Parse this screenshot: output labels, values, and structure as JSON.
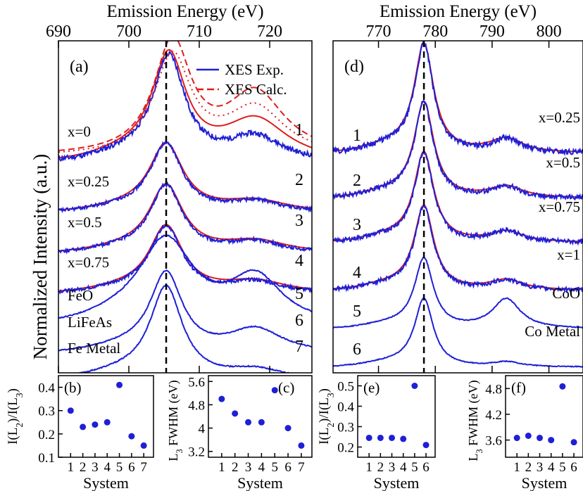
{
  "colors": {
    "exp": "#1f1fd6",
    "calc": "#e01b1b",
    "marker": "#1f1fd6",
    "axis": "#000000"
  },
  "chart_data": [
    {
      "id": "a",
      "type": "line",
      "panel_label": "(a)",
      "xlabel": "Emission Energy (eV)",
      "ylabel": "Normalized Intensity  (a.u.)",
      "xlim": [
        690,
        726
      ],
      "x_ticks": [
        690,
        700,
        710,
        720
      ],
      "vline_x": 705.3,
      "legend": {
        "placement": "top-right",
        "entries": [
          "XES Exp.",
          "XES Calc."
        ]
      },
      "spectra": [
        {
          "number": "1",
          "label": "x=0",
          "calc": true
        },
        {
          "number": "2",
          "label": "x=0.25",
          "calc": true
        },
        {
          "number": "3",
          "label": "x=0.5",
          "calc": true
        },
        {
          "number": "4",
          "label": "x=0.75",
          "calc": true
        },
        {
          "number": "5",
          "label": "FeO",
          "calc": false
        },
        {
          "number": "6",
          "label": "LiFeAs",
          "calc": false
        },
        {
          "number": "7",
          "label": "Fe Metal",
          "calc": false
        }
      ]
    },
    {
      "id": "d",
      "type": "line",
      "panel_label": "(d)",
      "xlabel": "Emission Energy (eV)",
      "xlim": [
        762,
        806
      ],
      "x_ticks": [
        770,
        780,
        790,
        800
      ],
      "vline_x": 778,
      "spectra": [
        {
          "number": "1",
          "label": "x=0.25",
          "calc": true
        },
        {
          "number": "2",
          "label": "x=0.5",
          "calc": true
        },
        {
          "number": "3",
          "label": "x=0.75",
          "calc": true
        },
        {
          "number": "4",
          "label": "x=1",
          "calc": true
        },
        {
          "number": "5",
          "label": "CoO",
          "calc": false
        },
        {
          "number": "6",
          "label": "Co Metal",
          "calc": false
        }
      ]
    },
    {
      "id": "b",
      "type": "scatter",
      "panel_label": "(b)",
      "xlabel": "System",
      "ylabel": "I(L2)/I(L3)",
      "x": [
        1,
        2,
        3,
        4,
        5,
        6,
        7
      ],
      "y": [
        0.3,
        0.23,
        0.24,
        0.25,
        0.41,
        0.19,
        0.15
      ],
      "ylim": [
        0.1,
        0.45
      ],
      "y_ticks": [
        "0.1",
        "0.2",
        "0.3",
        "0.4"
      ],
      "xlim": [
        0,
        7.8
      ]
    },
    {
      "id": "c",
      "type": "scatter",
      "panel_label": "(c)",
      "xlabel": "System",
      "ylabel": "L3 FWHM (eV)",
      "x": [
        1,
        2,
        3,
        4,
        5,
        6,
        7
      ],
      "y": [
        5.0,
        4.5,
        4.2,
        4.2,
        5.3,
        4.0,
        3.4
      ],
      "ylim": [
        3.0,
        5.8
      ],
      "y_ticks": [
        "3.2",
        "4",
        "4.8",
        "5.6"
      ],
      "xlim": [
        0,
        7.8
      ]
    },
    {
      "id": "e",
      "type": "scatter",
      "panel_label": "(e)",
      "xlabel": "System",
      "ylabel": "I(L2)/I(L3)",
      "x": [
        1,
        2,
        3,
        4,
        5,
        6
      ],
      "y": [
        0.245,
        0.245,
        0.245,
        0.24,
        0.5,
        0.21
      ],
      "ylim": [
        0.15,
        0.55
      ],
      "y_ticks": [
        "0.2",
        "0.3",
        "0.4",
        "0.5"
      ],
      "xlim": [
        0,
        6.8
      ]
    },
    {
      "id": "f",
      "type": "scatter",
      "panel_label": "(f)",
      "xlabel": "System",
      "ylabel": "L3 FWHM (eV)",
      "x": [
        1,
        2,
        3,
        4,
        5,
        6
      ],
      "y": [
        3.65,
        3.7,
        3.65,
        3.6,
        4.85,
        3.55
      ],
      "ylim": [
        3.2,
        5.1
      ],
      "y_ticks": [
        "3.6",
        "4.2",
        "4.8"
      ],
      "xlim": [
        0,
        6.8
      ]
    }
  ]
}
